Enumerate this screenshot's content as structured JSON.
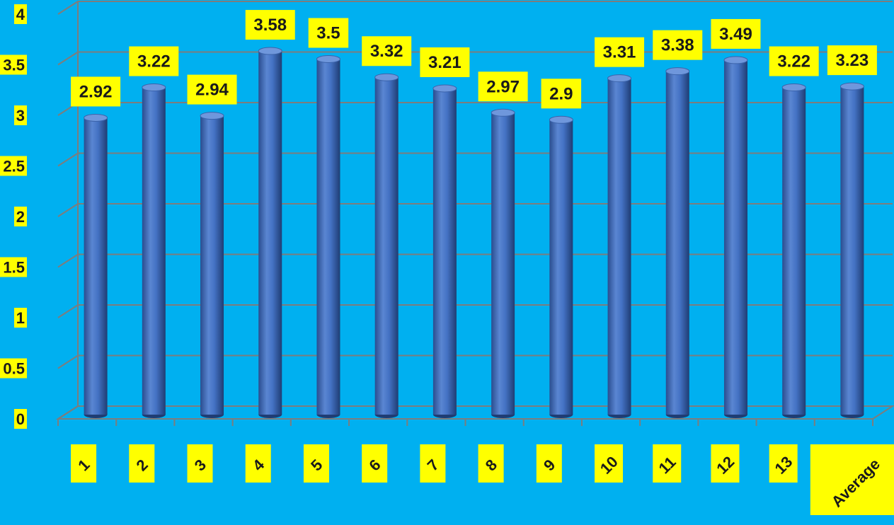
{
  "chart_data": {
    "type": "bar",
    "title": "",
    "xlabel": "",
    "ylabel": "",
    "categories": [
      "1",
      "2",
      "3",
      "4",
      "5",
      "6",
      "7",
      "8",
      "9",
      "10",
      "11",
      "12",
      "13",
      "Average"
    ],
    "values": [
      2.92,
      3.22,
      2.94,
      3.58,
      3.5,
      3.32,
      3.21,
      2.97,
      2.9,
      3.31,
      3.38,
      3.49,
      3.22,
      3.23
    ],
    "y_ticks": [
      "0",
      "0.5",
      "1",
      "1.5",
      "2",
      "2.5",
      "3",
      "3.5",
      "4"
    ],
    "ylim": [
      0,
      4
    ],
    "grid": true,
    "legend": "none",
    "bar_shape": "cylinder",
    "colors": {
      "background": "#00b0f0",
      "bar": "#4472c4",
      "label_box": "#ffff00",
      "gridline": "#7d7d7d"
    }
  }
}
